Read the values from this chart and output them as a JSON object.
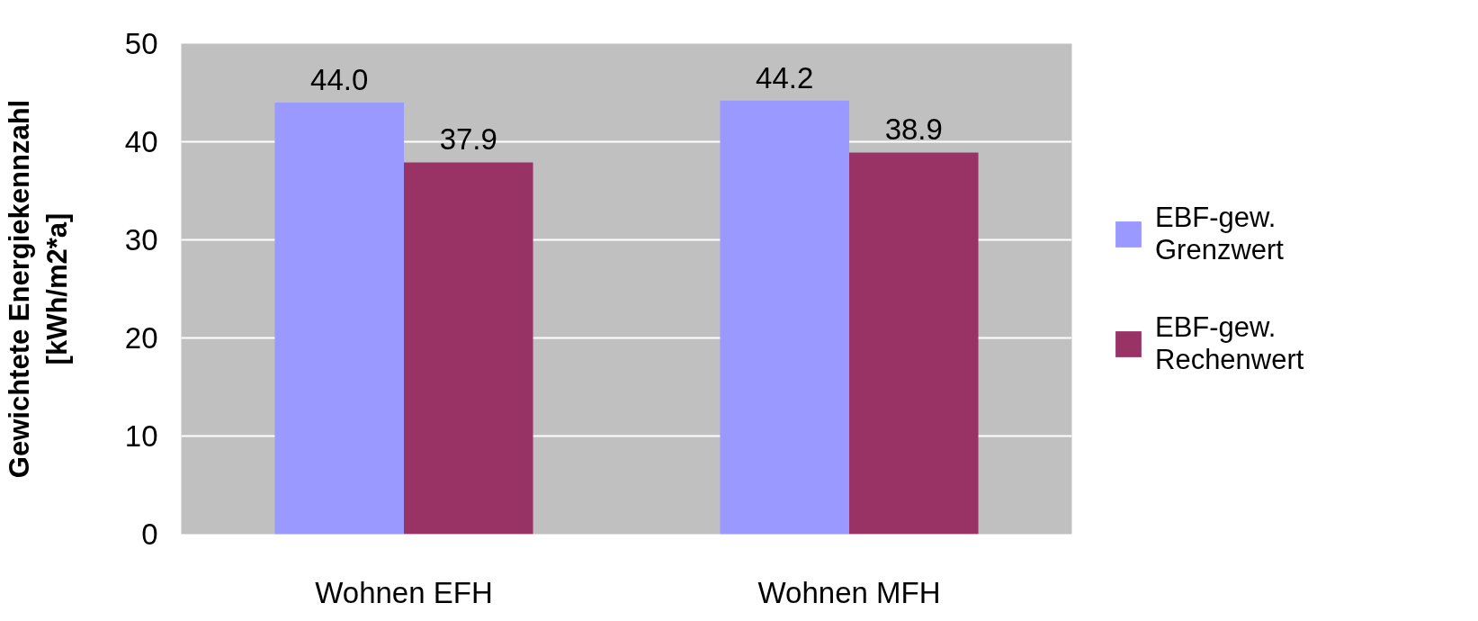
{
  "chart_data": {
    "type": "bar",
    "ylabel": "Gewichtete Energiekennzahl [kWh/m2*a]",
    "categories": [
      "Wohnen EFH",
      "Wohnen MFH"
    ],
    "series": [
      {
        "name": "EBF-gew. Grenzwert",
        "color": "#9999ff",
        "values": [
          44.0,
          44.2
        ],
        "value_labels": [
          "44.0",
          "44.2"
        ]
      },
      {
        "name": "EBF-gew. Rechenwert",
        "color": "#993366",
        "values": [
          37.9,
          38.9
        ],
        "value_labels": [
          "37.9",
          "38.9"
        ]
      }
    ],
    "ylim": [
      0,
      50
    ],
    "yticks": [
      0,
      10,
      20,
      30,
      40,
      50
    ],
    "grid": "y",
    "legend": "right"
  }
}
